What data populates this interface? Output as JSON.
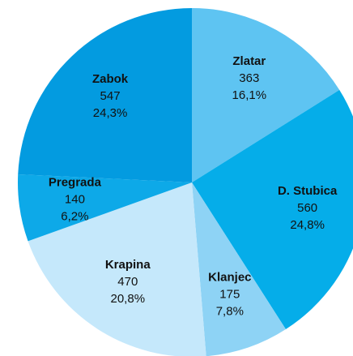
{
  "chart_data": {
    "type": "pie",
    "categories": [
      "Zlatar",
      "D. Stubica",
      "Klanjec",
      "Krapina",
      "Pregrada",
      "Zabok"
    ],
    "values": [
      363,
      560,
      175,
      470,
      140,
      547
    ],
    "value_labels": [
      "16,1%",
      "24,8%",
      "7,8%",
      "20,8%",
      "6,2%",
      "24,3%"
    ],
    "colors": [
      "#5ec4f2",
      "#05ade9",
      "#8ed3f5",
      "#c5e8fb",
      "#0da9e8",
      "#039be0"
    ]
  }
}
